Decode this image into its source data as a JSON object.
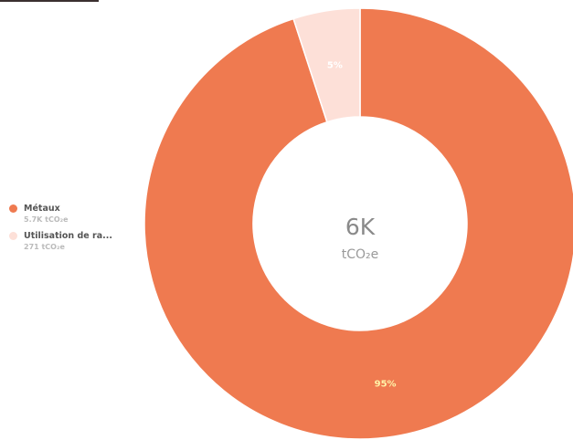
{
  "chart_data": {
    "type": "pie",
    "donut": true,
    "center": {
      "value": "6K",
      "unit": "tCO₂e"
    },
    "slices": [
      {
        "name": "Métaux",
        "value_label": "5.7K tCO₂e",
        "value": 5700,
        "percent": 95,
        "percent_label": "95%",
        "color": "#ef7a50",
        "label_color": "#fff3a8"
      },
      {
        "name": "Utilisation de ra...",
        "value_label": "271 tCO₂e",
        "value": 271,
        "percent": 5,
        "percent_label": "5%",
        "color": "#fde0d8",
        "label_color": "#ffffff"
      }
    ],
    "legend_position": "left"
  }
}
